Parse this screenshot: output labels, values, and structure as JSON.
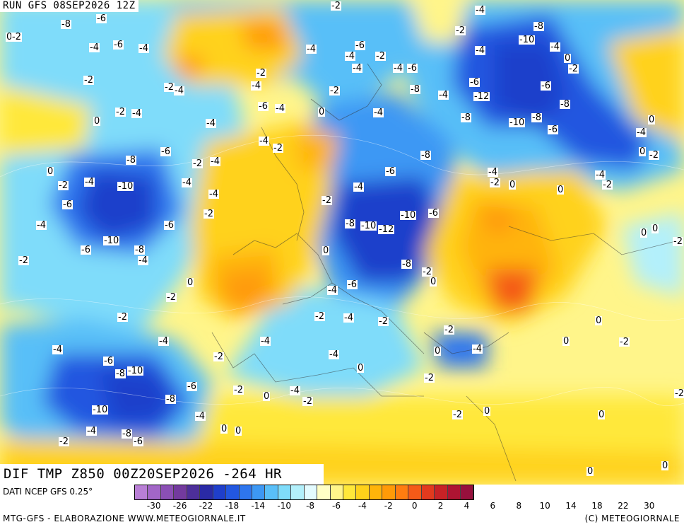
{
  "header": {
    "run_title": "RUN GFS 08SEP2026 12Z"
  },
  "map_caption": "DIF TMP Z850 00Z20SEP2026 -264 HR",
  "footer": {
    "data_source": "DATI NCEP GFS 0.25°",
    "credit_left": "MTG-GFS - ELABORAZIONE WWW.METEOGIORNALE.IT",
    "credit_right": "(C) METEOGIORNALE"
  },
  "legend": {
    "ticks": [
      "-30",
      "-26",
      "-22",
      "-18",
      "-14",
      "-10",
      "-8",
      "-6",
      "-4",
      "-2",
      "0",
      "2",
      "4",
      "6",
      "8",
      "10",
      "14",
      "18",
      "22",
      "30"
    ],
    "colors": [
      "#b97fd6",
      "#a266c7",
      "#8b4fb5",
      "#733a9e",
      "#4d2f9a",
      "#2a2aa6",
      "#1f3fcb",
      "#2257e0",
      "#2e76ee",
      "#3d98f4",
      "#59bff8",
      "#7fdcfa",
      "#b3f0fb",
      "#e3fbff",
      "#ffffc6",
      "#fff58a",
      "#ffe83a",
      "#ffd21a",
      "#ffb40a",
      "#ff9a08",
      "#ff7d10",
      "#f45a18",
      "#e23a1e",
      "#c82226",
      "#ae1432",
      "#97103d"
    ]
  },
  "contour_labels": [
    "-2",
    "-4",
    "-6",
    "-8",
    "-10",
    "-12",
    "0"
  ]
}
